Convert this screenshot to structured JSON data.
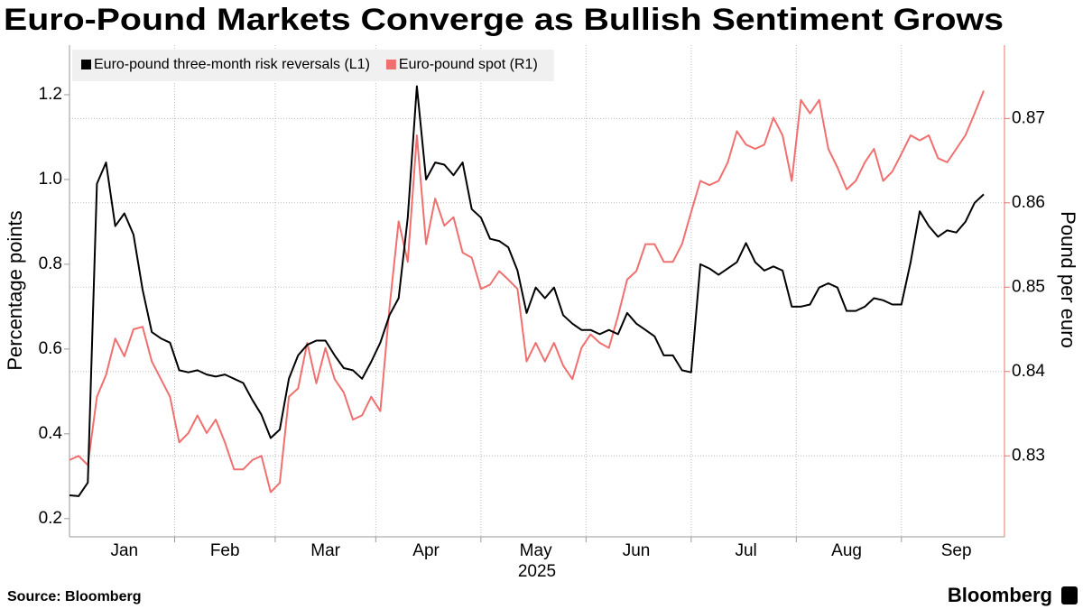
{
  "chart_data": {
    "type": "line",
    "title": "Euro-Pound Markets Converge as Bullish Sentiment Grows",
    "ylabel": "Percentage points",
    "y2label": "Pound per euro",
    "xlabel": "2025",
    "source": "Source: Bloomberg",
    "brand": "Bloomberg",
    "categories": [
      null,
      null,
      null,
      null,
      null,
      null,
      "Jan",
      null,
      null,
      null,
      null,
      null,
      null,
      null,
      null,
      null,
      null,
      "Feb",
      null,
      null,
      null,
      null,
      null,
      null,
      null,
      null,
      null,
      null,
      "Mar",
      null,
      null,
      null,
      null,
      null,
      null,
      null,
      null,
      null,
      null,
      "Apr",
      null,
      null,
      null,
      null,
      null,
      null,
      null,
      null,
      null,
      null,
      null,
      "May",
      null,
      null,
      null,
      null,
      null,
      null,
      null,
      null,
      null,
      null,
      "Jun",
      null,
      null,
      null,
      null,
      null,
      null,
      null,
      null,
      null,
      null,
      null,
      "Jul",
      null,
      null,
      null,
      null,
      null,
      null,
      null,
      null,
      null,
      null,
      "Aug",
      null,
      null,
      null,
      null,
      null,
      null,
      null,
      null,
      null,
      null,
      null,
      "Sep",
      null,
      null,
      null
    ],
    "ylim": [
      0.157,
      1.317
    ],
    "yticks": [
      0.2,
      0.4,
      0.6,
      0.8,
      {
        "value": 1,
        "label": "1.0"
      },
      1.2
    ],
    "y2lim": [
      0.8204,
      0.8787
    ],
    "y2ticks": [
      0.83,
      0.84,
      0.85,
      0.86,
      0.87
    ],
    "grid": true,
    "legend": "top-left",
    "series": [
      {
        "name": "Euro-pound three-month risk reversals (L1)",
        "color": "#000000",
        "axis": "y",
        "values": [
          0.255,
          0.253,
          0.285,
          0.99,
          1.04,
          0.89,
          0.92,
          0.87,
          0.74,
          0.64,
          0.625,
          0.615,
          0.55,
          0.545,
          0.55,
          0.54,
          0.535,
          0.54,
          0.53,
          0.52,
          0.48,
          0.445,
          0.39,
          0.41,
          0.53,
          0.585,
          0.61,
          0.62,
          0.62,
          0.585,
          0.555,
          0.55,
          0.53,
          0.57,
          0.615,
          0.68,
          0.72,
          0.91,
          1.22,
          1.0,
          1.04,
          1.035,
          1.01,
          1.04,
          0.93,
          0.91,
          0.86,
          0.855,
          0.84,
          0.785,
          0.685,
          0.745,
          0.72,
          0.745,
          0.68,
          0.66,
          0.645,
          0.645,
          0.635,
          0.645,
          0.635,
          0.685,
          0.66,
          0.645,
          0.63,
          0.585,
          0.585,
          0.55,
          0.545,
          0.8,
          0.79,
          0.775,
          0.79,
          0.805,
          0.85,
          0.805,
          0.785,
          0.795,
          0.785,
          0.7,
          0.7,
          0.705,
          0.745,
          0.755,
          0.745,
          0.69,
          0.69,
          0.7,
          0.72,
          0.715,
          0.705,
          0.705,
          0.805,
          0.925,
          0.89,
          0.865,
          0.88,
          0.875,
          0.9,
          0.945,
          0.965
        ]
      },
      {
        "name": "Euro-pound spot (R1)",
        "color": "#f07070",
        "axis": "y2",
        "values": [
          0.8295,
          0.83,
          0.8289,
          0.837,
          0.8396,
          0.8439,
          0.8418,
          0.845,
          0.8453,
          0.8412,
          0.8391,
          0.837,
          0.8316,
          0.8327,
          0.8348,
          0.8327,
          0.8343,
          0.8316,
          0.8284,
          0.8284,
          0.8295,
          0.83,
          0.8257,
          0.8268,
          0.837,
          0.838,
          0.8434,
          0.8386,
          0.8428,
          0.8391,
          0.8375,
          0.8343,
          0.8348,
          0.837,
          0.8353,
          0.8476,
          0.8578,
          0.853,
          0.868,
          0.8551,
          0.8605,
          0.8573,
          0.8583,
          0.8541,
          0.8535,
          0.8498,
          0.8503,
          0.8519,
          0.8509,
          0.8498,
          0.8412,
          0.8434,
          0.8412,
          0.8434,
          0.8407,
          0.8391,
          0.8428,
          0.8444,
          0.8434,
          0.8428,
          0.8466,
          0.8509,
          0.8519,
          0.8551,
          0.8551,
          0.853,
          0.853,
          0.8551,
          0.8589,
          0.8626,
          0.8621,
          0.8626,
          0.8648,
          0.8685,
          0.8669,
          0.8664,
          0.8669,
          0.8701,
          0.868,
          0.8626,
          0.8722,
          0.8706,
          0.8722,
          0.8664,
          0.8642,
          0.8616,
          0.8626,
          0.8648,
          0.8664,
          0.8626,
          0.8637,
          0.8658,
          0.868,
          0.8674,
          0.868,
          0.8653,
          0.8648,
          0.8664,
          0.868,
          0.8706,
          0.8733
        ]
      }
    ]
  }
}
